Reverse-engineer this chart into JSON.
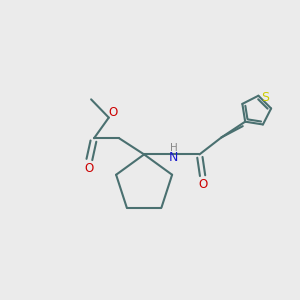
{
  "background_color": "#ebebeb",
  "bond_color": "#4a7070",
  "o_color": "#cc0000",
  "n_color": "#1a1acc",
  "s_color": "#cccc00",
  "h_color": "#888888",
  "lw": 1.5,
  "figsize": [
    3.0,
    3.0
  ],
  "dpi": 100,
  "xlim": [
    0,
    10
  ],
  "ylim": [
    0,
    10
  ]
}
